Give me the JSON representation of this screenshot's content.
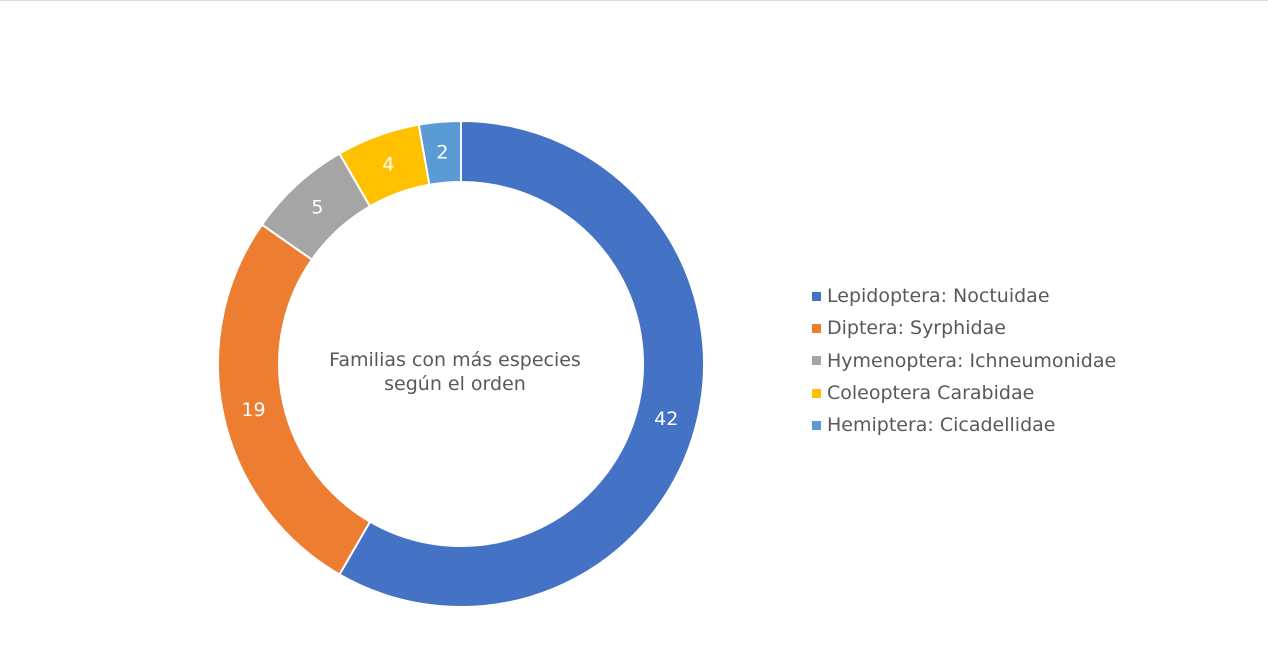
{
  "chart_data": {
    "type": "pie",
    "variant": "doughnut",
    "title_lines": [
      "Familias con más especies",
      "según el orden"
    ],
    "categories": [
      "Lepidoptera: Noctuidae",
      "Diptera: Syrphidae",
      "Hymenoptera: Ichneumonidae",
      "Coleoptera Carabidae",
      "Hemiptera: Cicadellidae"
    ],
    "values": [
      42,
      19,
      5,
      4,
      2
    ],
    "data_labels": [
      "42",
      "19",
      "5",
      "4",
      "2"
    ],
    "colors": [
      "#4472c4",
      "#ed7d31",
      "#a5a5a5",
      "#ffc000",
      "#5b9bd5"
    ],
    "legend_position": "right",
    "start_angle": "12 o'clock, clockwise"
  }
}
